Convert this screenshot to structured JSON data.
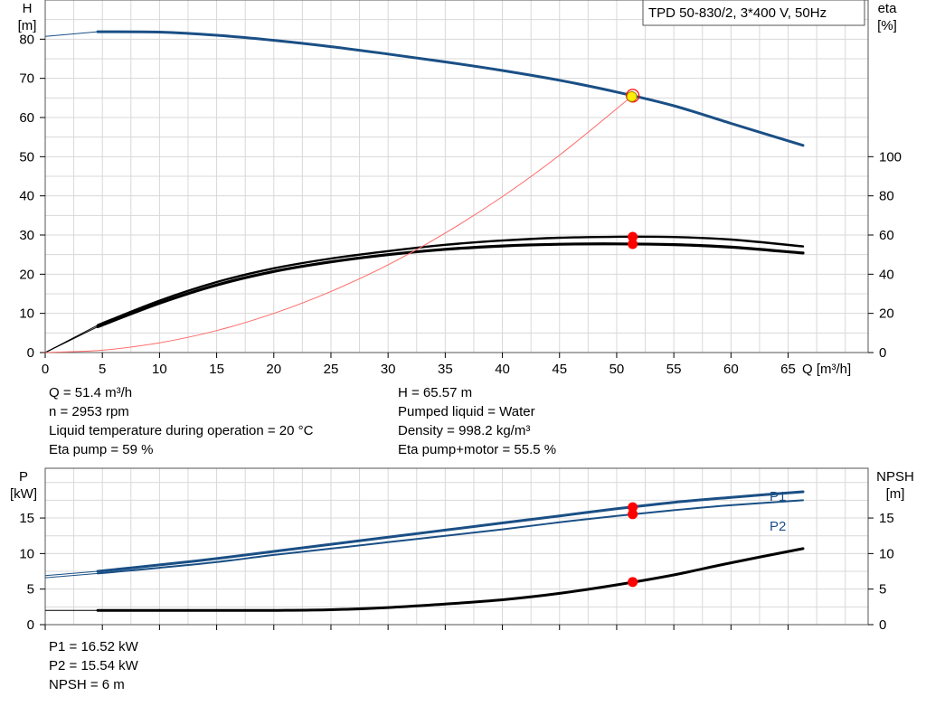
{
  "colors": {
    "head_curve": "#1a4f85",
    "power_curve": "#1a4f85",
    "eta_curve": "#000000",
    "npsh_curve": "#000000",
    "system_curve": "#ff6a6a",
    "duty_marker": "#ff0000",
    "duty_marker_head": "#ffee00",
    "grid": "#d8d8d8",
    "axis": "#000000"
  },
  "info_top_left": [
    "Q = 51.4 m³/h",
    "n = 2953 rpm",
    "Liquid temperature during operation = 20 °C",
    "Eta pump = 59 %"
  ],
  "info_top_right": [
    "H = 65.57 m",
    "Pumped liquid = Water",
    "Density = 998.2 kg/m³",
    "Eta pump+motor = 55.5 %"
  ],
  "info_bottom": [
    "P1 = 16.52 kW",
    "P2 = 15.54 kW",
    "NPSH = 6 m"
  ],
  "chart_data": [
    {
      "type": "line",
      "title": "TPD 50-830/2, 3*400 V, 50Hz",
      "xlabel": "Q [m³/h]",
      "ylabel_left": [
        "H",
        "[m]"
      ],
      "ylabel_right": [
        "eta",
        "[%]"
      ],
      "xlim": [
        0,
        72
      ],
      "xticks": [
        0,
        5,
        10,
        15,
        20,
        25,
        30,
        35,
        40,
        45,
        50,
        55,
        60,
        65
      ],
      "ylim_left": [
        0,
        90
      ],
      "yticks_left": [
        0,
        10,
        20,
        30,
        40,
        50,
        60,
        70,
        80
      ],
      "ylim_right": [
        0,
        180
      ],
      "yticks_right": [
        0,
        20,
        40,
        60,
        80,
        100
      ],
      "grid": true,
      "series": [
        {
          "axis": "left",
          "role": "head",
          "width": 3,
          "x": [
            4.6,
            10,
            15,
            20,
            25,
            30,
            35,
            40,
            45,
            50,
            55,
            60,
            66.3
          ],
          "y": [
            81.9,
            81.8,
            81.0,
            79.7,
            78.1,
            76.2,
            74.2,
            72.0,
            69.5,
            66.5,
            63.0,
            58.5,
            52.9
          ],
          "start_x": [
            0,
            4.6
          ],
          "start_y": [
            80.7,
            81.9
          ]
        },
        {
          "axis": "right",
          "role": "eta",
          "width": 2.4,
          "x": [
            4.6,
            10,
            15,
            20,
            25,
            30,
            35,
            40,
            45,
            50,
            55,
            60,
            66.3
          ],
          "y": [
            14.0,
            26.5,
            36.0,
            43.0,
            48.0,
            51.8,
            55.0,
            57.2,
            58.6,
            59.1,
            59.0,
            57.7,
            54.2
          ],
          "start_x": [
            0,
            4.6
          ],
          "start_y": [
            0,
            14.0
          ]
        },
        {
          "axis": "right",
          "role": "eta",
          "width": 3.2,
          "x": [
            4.6,
            10,
            15,
            20,
            25,
            30,
            35,
            40,
            45,
            50,
            55,
            60,
            66.3
          ],
          "y": [
            13.2,
            25.2,
            34.5,
            41.4,
            46.3,
            50.0,
            52.7,
            54.4,
            55.3,
            55.5,
            55.1,
            53.8,
            50.8
          ],
          "start_x": [
            0,
            4.6
          ],
          "start_y": [
            0,
            13.2
          ]
        },
        {
          "axis": "left",
          "role": "system",
          "width": 1,
          "x": [
            0,
            5,
            10,
            15,
            20,
            25,
            30,
            35,
            40,
            45,
            51.4
          ],
          "y": [
            0,
            0.6,
            2.5,
            5.6,
            10.0,
            15.6,
            22.4,
            30.5,
            39.8,
            50.4,
            65.6
          ]
        }
      ],
      "duty_point": {
        "x": 51.4,
        "head": 65.57,
        "eta_pump": 59,
        "eta_pump_motor": 55.5
      }
    },
    {
      "type": "line",
      "ylabel_left": [
        "P",
        "[kW]"
      ],
      "ylabel_right": [
        "NPSH",
        "[m]"
      ],
      "xlim": [
        0,
        72
      ],
      "xticks": [
        0,
        5,
        10,
        15,
        20,
        25,
        30,
        35,
        40,
        45,
        50,
        55,
        60,
        65
      ],
      "ylim_left": [
        0,
        22
      ],
      "yticks_left": [
        0,
        5,
        10,
        15
      ],
      "ylim_right": [
        0,
        22
      ],
      "yticks_right": [
        0,
        5,
        10,
        15
      ],
      "grid": true,
      "series": [
        {
          "name": "P1",
          "axis": "left",
          "role": "power",
          "width": 3,
          "x": [
            4.6,
            10,
            15,
            20,
            25,
            30,
            35,
            40,
            45,
            50,
            55,
            60,
            66.3
          ],
          "y": [
            7.5,
            8.4,
            9.3,
            10.3,
            11.3,
            12.3,
            13.3,
            14.3,
            15.3,
            16.3,
            17.2,
            17.9,
            18.7
          ],
          "start_x": [
            0,
            4.6
          ],
          "start_y": [
            6.9,
            7.5
          ]
        },
        {
          "name": "P2",
          "axis": "left",
          "role": "power",
          "width": 2,
          "x": [
            4.6,
            10,
            15,
            20,
            25,
            30,
            35,
            40,
            45,
            50,
            55,
            60,
            66.3
          ],
          "y": [
            7.2,
            8.0,
            8.8,
            9.8,
            10.7,
            11.6,
            12.5,
            13.4,
            14.4,
            15.3,
            16.1,
            16.8,
            17.5
          ],
          "start_x": [
            0,
            4.6
          ],
          "start_y": [
            6.6,
            7.2
          ]
        },
        {
          "axis": "right",
          "role": "npsh",
          "width": 3,
          "x": [
            4.6,
            10,
            15,
            20,
            25,
            30,
            35,
            40,
            45,
            50,
            55,
            60,
            66.3
          ],
          "y": [
            2.0,
            2.0,
            2.0,
            2.0,
            2.1,
            2.4,
            2.9,
            3.5,
            4.4,
            5.6,
            7.0,
            8.7,
            10.7
          ],
          "start_x": [
            0,
            4.6
          ],
          "start_y": [
            2.0,
            2.0
          ]
        }
      ],
      "duty_point": {
        "x": 51.4,
        "p1": 16.52,
        "p2": 15.54,
        "npsh": 6
      }
    }
  ]
}
